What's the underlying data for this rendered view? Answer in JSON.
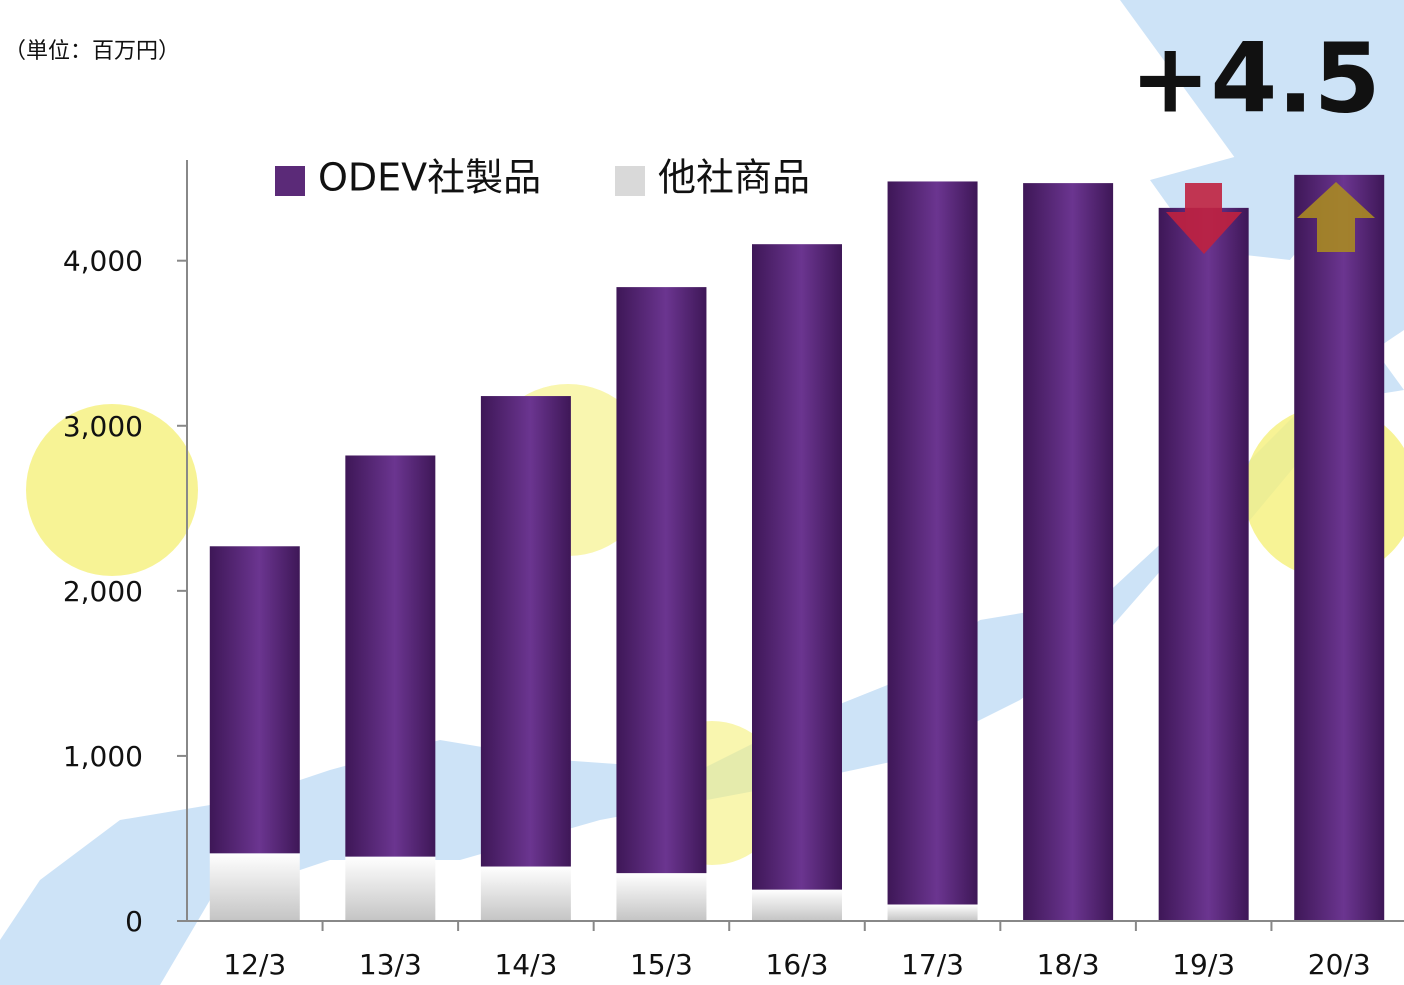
{
  "chart_data": {
    "type": "stacked_bar",
    "unit_label": "（単位：百万円）",
    "annotation": "+4.5",
    "categories": [
      "12/3",
      "13/3",
      "14/3",
      "15/3",
      "16/3",
      "17/3",
      "18/3",
      "19/3",
      "20/3"
    ],
    "series": [
      {
        "name": "ODEV社製品",
        "color": "#5b2a78",
        "values": [
          1860,
          2430,
          2850,
          3550,
          3910,
          4380,
          4470,
          4320,
          4520
        ]
      },
      {
        "name": "他社商品",
        "color": "#d9d9d9",
        "values": [
          410,
          390,
          330,
          290,
          190,
          100,
          0,
          0,
          0
        ]
      }
    ],
    "ylim": [
      0,
      4610
    ],
    "yticks": [
      0,
      {
        "value": 1000,
        "label": "1,000"
      },
      {
        "value": 2000,
        "label": "2,000"
      },
      {
        "value": 3000,
        "label": "3,000"
      },
      {
        "value": 4000,
        "label": "4,000"
      }
    ]
  }
}
